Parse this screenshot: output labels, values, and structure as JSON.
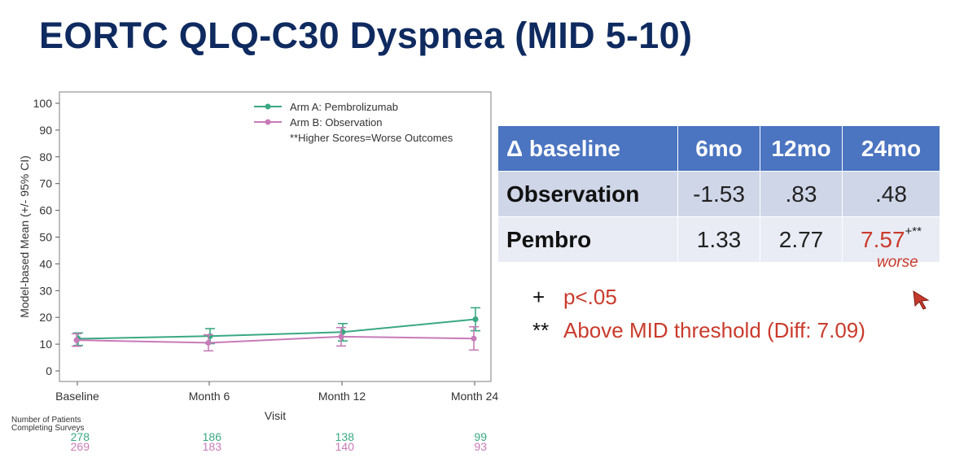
{
  "slide": {
    "title": "EORTC QLQ-C30 Dyspnea (MID 5-10)"
  },
  "chart_data": {
    "type": "line",
    "ylabel": "Model-based Mean (+/- 95% CI)",
    "xlabel": "Visit",
    "ylim": [
      0,
      100
    ],
    "yticks": [
      0,
      10,
      20,
      30,
      40,
      50,
      60,
      70,
      80,
      90,
      100
    ],
    "categories": [
      "Baseline",
      "Month 6",
      "Month 12",
      "Month 24"
    ],
    "series": [
      {
        "name": "Arm A: Pembrolizumab",
        "color": "#3aa882",
        "values": [
          12.0,
          13.0,
          14.5,
          19.3
        ],
        "ci_low": [
          9.5,
          10.2,
          11.2,
          15.0
        ],
        "ci_high": [
          14.2,
          15.8,
          17.7,
          23.6
        ],
        "n": [
          "278",
          "186",
          "138",
          "99"
        ]
      },
      {
        "name": "Arm B: Observation",
        "color": "#c77bb8",
        "values": [
          11.5,
          10.5,
          12.8,
          12.1
        ],
        "ci_low": [
          9.2,
          7.5,
          9.3,
          7.8
        ],
        "ci_high": [
          13.9,
          13.5,
          16.2,
          16.5
        ],
        "n": [
          "269",
          "183",
          "140",
          "93"
        ]
      }
    ],
    "legend_note": "**Higher Scores=Worse Outcomes",
    "legend_position": "top-right",
    "patients_label_1": "Number of Patients",
    "patients_label_2": "Completing Surveys"
  },
  "table": {
    "headers": [
      "Δ baseline",
      "6mo",
      "12mo",
      "24mo"
    ],
    "rows": [
      {
        "label": "Observation",
        "v6": "-1.53",
        "v12": ".83",
        "v24": ".48"
      },
      {
        "label": "Pembro",
        "v6": "1.33",
        "v12": "2.77",
        "v24": "7.57",
        "v24_mark": "+**"
      }
    ],
    "note": "worse",
    "highlight_color": "#c93b2c",
    "header_color": "#4b74c1"
  },
  "legend": [
    {
      "symbol": "+",
      "text": "p<.05"
    },
    {
      "symbol": "**",
      "text": "Above MID threshold (Diff: 7.09)"
    }
  ]
}
